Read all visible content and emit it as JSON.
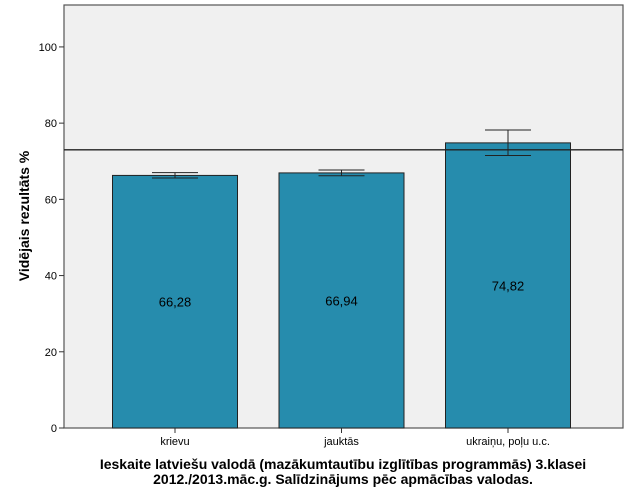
{
  "chart_data": {
    "type": "bar",
    "categories": [
      "krievu",
      "jauktās",
      "ukraiņu, poļu u.c."
    ],
    "values": [
      66.28,
      66.94,
      74.82
    ],
    "value_labels": [
      "66,28",
      "66,94",
      "74,82"
    ],
    "error_bars": [
      [
        65.6,
        67.0
      ],
      [
        66.2,
        67.7
      ],
      [
        71.5,
        78.2
      ]
    ],
    "reference_line": 73.0,
    "title": "",
    "xlabel_lines": [
      "Ieskaite latviešu valodā (mazākumtautību izglītības programmās) 3.klasei",
      "2012./2013.māc.g. Salīdzinājums pēc apmācības valodas."
    ],
    "ylabel": "Vidējais rezultāts %",
    "ylim": [
      0,
      111
    ],
    "yticks": [
      0,
      20,
      40,
      60,
      80,
      100
    ],
    "grid": false,
    "colors": {
      "bar": "#268cad",
      "plot_bg": "#f0f0f0"
    }
  }
}
